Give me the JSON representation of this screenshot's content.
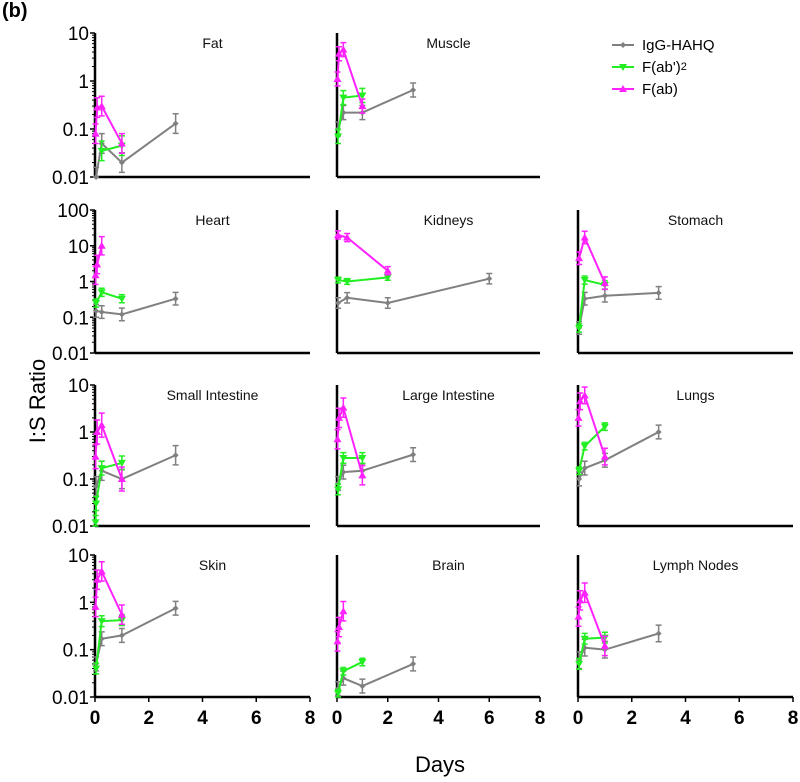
{
  "figure_label": "(b)",
  "chart_data": {
    "type": "line",
    "ylabel": "I:S Ratio",
    "xlabel": "Days",
    "xlim": [
      0,
      8
    ],
    "yscale": "log",
    "xtick_labels": [
      "0",
      "2",
      "4",
      "6",
      "8"
    ],
    "xticks": [
      0,
      2,
      4,
      6,
      8
    ],
    "legend": [
      {
        "name": "IgG-HAHQ",
        "color": "#808080",
        "marker": "diamond"
      },
      {
        "name": "F(ab')",
        "sub": "2",
        "color": "#22ee22",
        "marker": "triangle-down"
      },
      {
        "name": "F(ab)",
        "color": "#ff22ff",
        "marker": "triangle-up"
      }
    ],
    "legend_position": "top-right",
    "panels": [
      {
        "title": "Fat",
        "ylim": [
          0.01,
          10
        ],
        "ytick_labels": [
          "0.01",
          "0.1",
          "1",
          "10"
        ],
        "series": [
          {
            "name": "IgG-HAHQ",
            "x": [
              0.04,
              0.25,
              1,
              3
            ],
            "y": [
              0.01,
              0.05,
              0.02,
              0.13
            ],
            "err": 1.6
          },
          {
            "name": "F(ab')2",
            "x": [
              0.25,
              1
            ],
            "y": [
              0.035,
              0.045
            ],
            "err": 1.6
          },
          {
            "name": "F(ab)",
            "x": [
              0.02,
              0.08,
              0.25,
              1
            ],
            "y": [
              0.08,
              0.28,
              0.3,
              0.05
            ],
            "err": 1.6
          }
        ]
      },
      {
        "title": "Muscle",
        "ylim": [
          0.01,
          10
        ],
        "series": [
          {
            "name": "IgG-HAHQ",
            "x": [
              0.04,
              0.25,
              1,
              3
            ],
            "y": [
              0.1,
              0.22,
              0.22,
              0.65
            ],
            "err": 1.4
          },
          {
            "name": "F(ab')2",
            "x": [
              0.04,
              0.25,
              1
            ],
            "y": [
              0.07,
              0.45,
              0.5
            ],
            "err": 1.4
          },
          {
            "name": "F(ab)",
            "x": [
              0.02,
              0.08,
              0.25,
              1
            ],
            "y": [
              1.1,
              3.7,
              4.5,
              0.3
            ],
            "err": 1.4
          }
        ]
      },
      {
        "title": "Heart",
        "ylim": [
          0.01,
          100
        ],
        "ytick_labels": [
          "0.01",
          "0.1",
          "1",
          "10",
          "100"
        ],
        "series": [
          {
            "name": "IgG-HAHQ",
            "x": [
              0.04,
              0.25,
              1,
              3
            ],
            "y": [
              0.15,
              0.14,
              0.12,
              0.33
            ],
            "err": 1.5
          },
          {
            "name": "F(ab')2",
            "x": [
              0.04,
              0.25,
              1
            ],
            "y": [
              0.25,
              0.5,
              0.33
            ],
            "err": 1.3
          },
          {
            "name": "F(ab)",
            "x": [
              0.02,
              0.08,
              0.25
            ],
            "y": [
              1.5,
              3,
              10
            ],
            "err": 1.8
          }
        ]
      },
      {
        "title": "Kidneys",
        "ylim": [
          0.01,
          100
        ],
        "series": [
          {
            "name": "IgG-HAHQ",
            "x": [
              0.04,
              0.4,
              2,
              6
            ],
            "y": [
              0.25,
              0.35,
              0.25,
              1.2
            ],
            "err": 1.4
          },
          {
            "name": "F(ab')2",
            "x": [
              0.04,
              0.4,
              2
            ],
            "y": [
              1.1,
              1.0,
              1.3
            ],
            "err": 1.2
          },
          {
            "name": "F(ab)",
            "x": [
              0.04,
              0.4,
              2
            ],
            "y": [
              20,
              17,
              2
            ],
            "err": 1.3
          }
        ]
      },
      {
        "title": "Stomach",
        "ylim": [
          0.01,
          100
        ],
        "series": [
          {
            "name": "IgG-HAHQ",
            "x": [
              0.04,
              0.25,
              1,
              3
            ],
            "y": [
              0.05,
              0.33,
              0.4,
              0.48
            ],
            "err": 1.5
          },
          {
            "name": "F(ab')2",
            "x": [
              0.04,
              0.25,
              1
            ],
            "y": [
              0.05,
              1.1,
              0.8
            ],
            "err": 1.3
          },
          {
            "name": "F(ab)",
            "x": [
              0.04,
              0.25,
              1
            ],
            "y": [
              4.5,
              17,
              0.9
            ],
            "err": 1.5
          }
        ]
      },
      {
        "title": "Small Intestine",
        "ylim": [
          0.01,
          10
        ],
        "ytick_labels": [
          "0.01",
          "0.1",
          "1",
          "10"
        ],
        "series": [
          {
            "name": "IgG-HAHQ",
            "x": [
              0.04,
              0.25,
              1,
              3
            ],
            "y": [
              0.07,
              0.15,
              0.1,
              0.32
            ],
            "err": 1.6
          },
          {
            "name": "F(ab')2",
            "x": [
              0.02,
              0.04,
              0.25,
              1
            ],
            "y": [
              0.012,
              0.03,
              0.17,
              0.22
            ],
            "err": 1.4
          },
          {
            "name": "F(ab)",
            "x": [
              0.02,
              0.08,
              0.25,
              1
            ],
            "y": [
              0.3,
              1.0,
              1.4,
              0.1
            ],
            "err": 1.8
          }
        ]
      },
      {
        "title": "Large Intestine",
        "ylim": [
          0.01,
          10
        ],
        "series": [
          {
            "name": "IgG-HAHQ",
            "x": [
              0.04,
              0.25,
              1,
              3
            ],
            "y": [
              0.08,
              0.14,
              0.15,
              0.33
            ],
            "err": 1.4
          },
          {
            "name": "F(ab')2",
            "x": [
              0.04,
              0.25,
              1
            ],
            "y": [
              0.06,
              0.28,
              0.28
            ],
            "err": 1.3
          },
          {
            "name": "F(ab)",
            "x": [
              0.02,
              0.08,
              0.25,
              1
            ],
            "y": [
              0.7,
              2,
              3.3,
              0.12
            ],
            "err": 1.6
          }
        ]
      },
      {
        "title": "Lungs",
        "ylim": [
          0.01,
          10
        ],
        "series": [
          {
            "name": "IgG-HAHQ",
            "x": [
              0.04,
              0.25,
              1,
              3
            ],
            "y": [
              0.1,
              0.17,
              0.25,
              1.0
            ],
            "err": 1.4
          },
          {
            "name": "F(ab')2",
            "x": [
              0.04,
              0.25,
              1
            ],
            "y": [
              0.15,
              0.5,
              1.3
            ],
            "err": 1.2
          },
          {
            "name": "F(ab)",
            "x": [
              0.02,
              0.08,
              0.25,
              1
            ],
            "y": [
              2,
              4.5,
              6,
              0.3
            ],
            "err": 1.5
          }
        ]
      },
      {
        "title": "Skin",
        "ylim": [
          0.01,
          10
        ],
        "ytick_labels": [
          "0.01",
          "0.1",
          "1",
          "10"
        ],
        "series": [
          {
            "name": "IgG-HAHQ",
            "x": [
              0.04,
              0.25,
              1,
              3
            ],
            "y": [
              0.05,
              0.17,
              0.2,
              0.75
            ],
            "err": 1.4
          },
          {
            "name": "F(ab')2",
            "x": [
              0.04,
              0.25,
              1
            ],
            "y": [
              0.04,
              0.4,
              0.42
            ],
            "err": 1.3
          },
          {
            "name": "F(ab)",
            "x": [
              0.02,
              0.08,
              0.25,
              1
            ],
            "y": [
              0.8,
              3,
              4.5,
              0.55
            ],
            "err": 1.6
          }
        ]
      },
      {
        "title": "Brain",
        "ylim": [
          0.01,
          10
        ],
        "series": [
          {
            "name": "IgG-HAHQ",
            "x": [
              0.04,
              0.25,
              1,
              3
            ],
            "y": [
              0.015,
              0.025,
              0.017,
              0.05
            ],
            "err": 1.4
          },
          {
            "name": "F(ab')2",
            "x": [
              0.04,
              0.25,
              1
            ],
            "y": [
              0.012,
              0.035,
              0.055
            ],
            "err": 1.2
          },
          {
            "name": "F(ab)",
            "x": [
              0.02,
              0.08,
              0.25
            ],
            "y": [
              0.15,
              0.3,
              0.65
            ],
            "err": 1.6
          }
        ]
      },
      {
        "title": "Lymph Nodes",
        "ylim": [
          0.01,
          10
        ],
        "series": [
          {
            "name": "IgG-HAHQ",
            "x": [
              0.04,
              0.25,
              1,
              3
            ],
            "y": [
              0.06,
              0.11,
              0.1,
              0.22
            ],
            "err": 1.5
          },
          {
            "name": "F(ab')2",
            "x": [
              0.04,
              0.25,
              1
            ],
            "y": [
              0.05,
              0.17,
              0.18
            ],
            "err": 1.3
          },
          {
            "name": "F(ab)",
            "x": [
              0.02,
              0.08,
              0.25,
              1
            ],
            "y": [
              0.5,
              1.1,
              1.6,
              0.12
            ],
            "err": 1.6
          }
        ]
      }
    ]
  }
}
